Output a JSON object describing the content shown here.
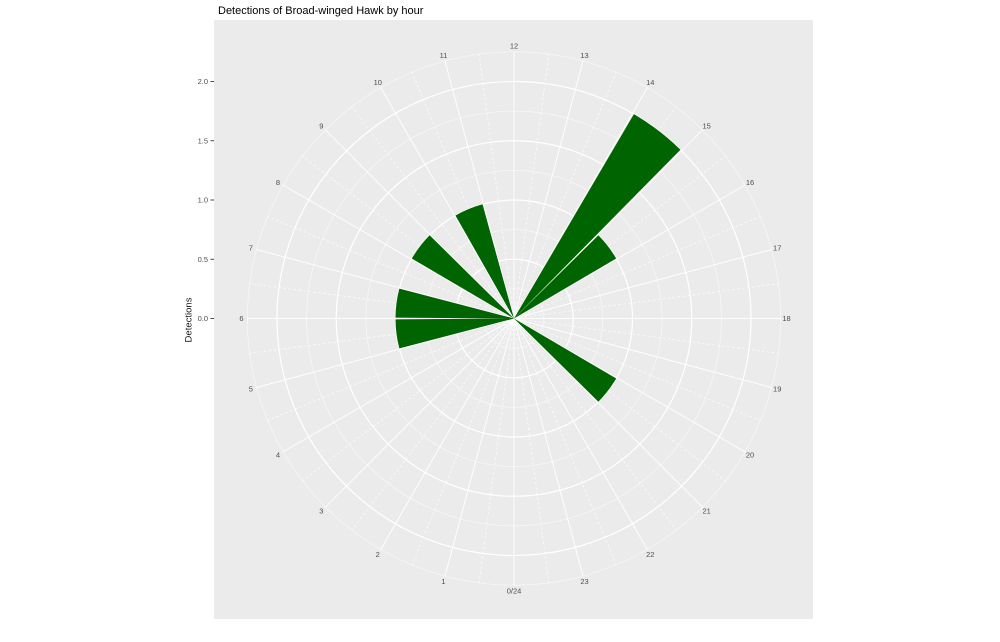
{
  "chart_data": {
    "type": "bar",
    "coord": "polar",
    "title": "Detections of Broad-winged Hawk by hour",
    "ylabel": "Detections",
    "xlabel": "",
    "hour_labels": [
      "0/24",
      "1",
      "2",
      "3",
      "4",
      "5",
      "6",
      "7",
      "8",
      "9",
      "10",
      "11",
      "12",
      "13",
      "14",
      "15",
      "16",
      "17",
      "18",
      "19",
      "20",
      "21",
      "22",
      "23"
    ],
    "values": [
      0,
      0,
      0,
      0,
      0,
      1,
      1,
      0,
      1,
      0,
      1,
      0,
      0,
      0,
      2,
      1,
      0,
      0,
      0,
      0,
      1,
      0,
      0,
      0
    ],
    "bin_width_hours": 1,
    "y_ticks": [
      0.0,
      0.5,
      1.0,
      1.5,
      2.0
    ],
    "y_tick_labels": [
      "0.0",
      "0.5",
      "1.0",
      "1.5",
      "2.0"
    ],
    "ylim": [
      0,
      2.3
    ],
    "grid": "on",
    "legend": "none",
    "bar_color": "#006400",
    "panel_color": "#EBEBEB",
    "grid_color": "#FFFFFF",
    "tick_text_color": "#4D4D4D",
    "axis_tick_color": "#333333"
  }
}
